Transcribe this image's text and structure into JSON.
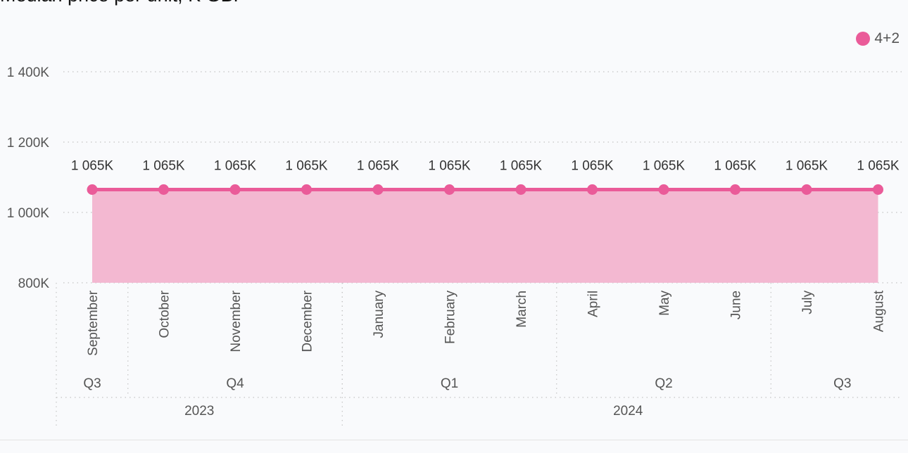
{
  "title": "Median price per unit, K GBP",
  "chart_data": {
    "type": "area",
    "title": "Median price per unit, K GBP",
    "ylim": [
      800,
      1400
    ],
    "y_ticks": [
      800,
      1000,
      1200,
      1400
    ],
    "y_tick_labels": [
      "800K",
      "1 000K",
      "1 200K",
      "1 400K"
    ],
    "categories": [
      "September",
      "October",
      "November",
      "December",
      "January",
      "February",
      "March",
      "April",
      "May",
      "June",
      "July",
      "August"
    ],
    "quarters": [
      {
        "label": "Q3",
        "span": 1
      },
      {
        "label": "Q4",
        "span": 3
      },
      {
        "label": "Q1",
        "span": 3
      },
      {
        "label": "Q2",
        "span": 3
      },
      {
        "label": "Q3",
        "span": 2
      }
    ],
    "years": [
      {
        "label": "2023",
        "span": 4
      },
      {
        "label": "2024",
        "span": 8
      }
    ],
    "series": [
      {
        "name": "4+2",
        "color": "#ea5b99",
        "fill": "#f3b8d1",
        "values": [
          1065,
          1065,
          1065,
          1065,
          1065,
          1065,
          1065,
          1065,
          1065,
          1065,
          1065,
          1065
        ],
        "data_labels": [
          "1 065K",
          "1 065K",
          "1 065K",
          "1 065K",
          "1 065K",
          "1 065K",
          "1 065K",
          "1 065K",
          "1 065K",
          "1 065K",
          "1 065K",
          "1 065K"
        ]
      }
    ],
    "grid": true,
    "legend_position": "top-right"
  }
}
